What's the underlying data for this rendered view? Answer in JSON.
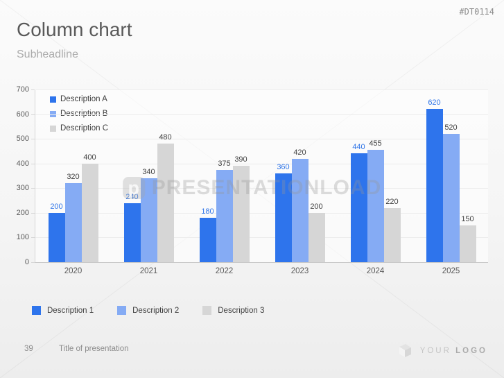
{
  "meta": {
    "code": "#DT0114"
  },
  "header": {
    "title": "Column chart",
    "subtitle": "Subheadline"
  },
  "chart_data": {
    "type": "bar",
    "categories": [
      "2020",
      "2021",
      "2022",
      "2023",
      "2024",
      "2025"
    ],
    "series": [
      {
        "name": "Description A",
        "color": "#2E74EC",
        "label_color": "#2E74E8",
        "values": [
          200,
          240,
          180,
          360,
          440,
          620
        ]
      },
      {
        "name": "Description B",
        "color": "#85ABF4",
        "label_color": "#404040",
        "values": [
          320,
          340,
          375,
          420,
          455,
          520
        ]
      },
      {
        "name": "Description C",
        "color": "#D6D6D6",
        "label_color": "#404040",
        "values": [
          400,
          480,
          390,
          200,
          220,
          150
        ]
      }
    ],
    "ylim": [
      0,
      700
    ],
    "ytick_step": 100,
    "grid": true,
    "legend_position": "top-left"
  },
  "bottom_legend": [
    {
      "label": "Description 1",
      "color": "#2E74EC"
    },
    {
      "label": "Description 2",
      "color": "#85ABF4"
    },
    {
      "label": "Description 3",
      "color": "#D6D6D6"
    }
  ],
  "watermark": {
    "letter": "p",
    "text": "PRESENTATIONLOAD"
  },
  "footer": {
    "page_number": "39",
    "title": "Title of presentation"
  },
  "logo": {
    "word1": "YOUR",
    "word2": "LOGO"
  }
}
